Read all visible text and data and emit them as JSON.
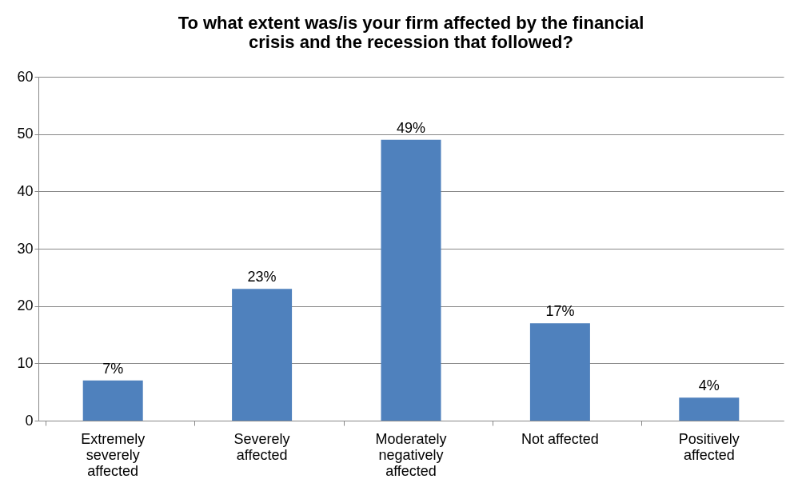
{
  "chart_data": {
    "type": "bar",
    "title": "To what extent was/is your firm affected by the financial crisis and the recession that followed?",
    "categories": [
      "Extremely severely affected",
      "Severely affected",
      "Moderately negatively affected",
      "Not affected",
      "Positively affected"
    ],
    "values": [
      7,
      23,
      49,
      17,
      4
    ],
    "value_labels": [
      "7%",
      "23%",
      "49%",
      "17%",
      "4%"
    ],
    "color": "#4f81bd",
    "ylim": [
      0,
      60
    ],
    "yticks": [
      0,
      10,
      20,
      30,
      40,
      50,
      60
    ],
    "grid": "y"
  }
}
